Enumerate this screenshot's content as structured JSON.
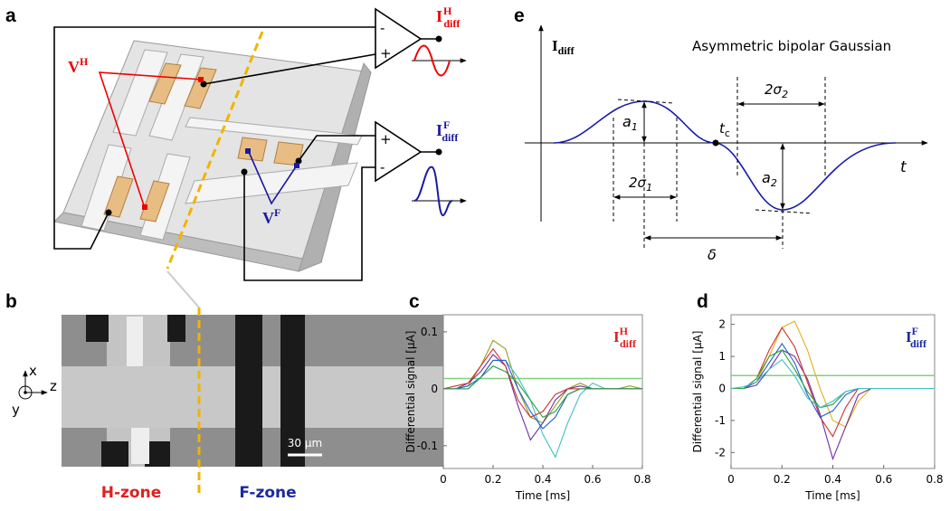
{
  "panel_a": {
    "label": "a",
    "amp_top": {
      "minus": "-",
      "plus": "+"
    },
    "amp_bottom": {
      "plus": "+",
      "minus": "-"
    },
    "i_h": {
      "base": "I",
      "sup": "H",
      "sub": "diff"
    },
    "i_f": {
      "base": "I",
      "sup": "F",
      "sub": "diff"
    },
    "v_h": {
      "base": "V",
      "sup": "H"
    },
    "v_f": {
      "base": "V",
      "sup": "F"
    }
  },
  "panel_b": {
    "label": "b",
    "axes": {
      "x": "x",
      "z": "z",
      "y": "y"
    },
    "scale_bar": "30 µm",
    "h_zone": "H-zone",
    "f_zone": "F-zone"
  },
  "panel_e": {
    "label": "e",
    "title": "Asymmetric bipolar Gaussian",
    "y_axis": {
      "base": "I",
      "sub": "diff"
    },
    "x_axis": "t",
    "a1": {
      "base": "a",
      "sub": "1"
    },
    "a2": {
      "base": "a",
      "sub": "2"
    },
    "sigma1": {
      "base": "2σ",
      "sub": "1"
    },
    "sigma2": {
      "base": "2σ",
      "sub": "2"
    },
    "tc": {
      "base": "t",
      "sub": "c"
    },
    "delta": "δ"
  },
  "chart_data": [
    {
      "type": "line",
      "label": "c",
      "xlabel": "Time [ms]",
      "ylabel": "Differential signal [μA]",
      "annotation": {
        "base": "I",
        "sup": "H",
        "sub": "diff",
        "color": "#e02020"
      },
      "xlim": [
        0,
        0.8
      ],
      "xticks": [
        0,
        0.2,
        0.4,
        0.6,
        0.8
      ],
      "ylim": [
        -0.14,
        0.13
      ],
      "yticks": [
        -0.1,
        0,
        0.1
      ],
      "hlines": [
        {
          "value": 0.018,
          "color": "#7fd17f"
        }
      ],
      "x": [
        0,
        0.05,
        0.1,
        0.15,
        0.2,
        0.25,
        0.3,
        0.35,
        0.4,
        0.45,
        0.5,
        0.55,
        0.6,
        0.65,
        0.7,
        0.75,
        0.8
      ],
      "series": [
        {
          "color": "#9a9a20",
          "values": [
            0,
            0,
            0.005,
            0.04,
            0.085,
            0.07,
            0,
            -0.05,
            -0.06,
            -0.03,
            0,
            0.01,
            0,
            0,
            0,
            0.005,
            0
          ]
        },
        {
          "color": "#40c0c0",
          "values": [
            0,
            0,
            0,
            0.02,
            0.05,
            0.05,
            0.02,
            -0.02,
            -0.08,
            -0.12,
            -0.06,
            -0.01,
            0.01,
            0,
            0,
            0,
            0
          ]
        },
        {
          "color": "#7030a0",
          "values": [
            0,
            0,
            0.01,
            0.03,
            0.06,
            0.04,
            -0.03,
            -0.09,
            -0.06,
            -0.02,
            0,
            0.005,
            0,
            0,
            0,
            0,
            0
          ]
        },
        {
          "color": "#d03030",
          "values": [
            0,
            0.005,
            0.01,
            0.04,
            0.07,
            0.04,
            -0.02,
            -0.05,
            -0.04,
            -0.01,
            0,
            0,
            0,
            0,
            0,
            0,
            0
          ]
        },
        {
          "color": "#2060d0",
          "values": [
            0,
            0,
            0.005,
            0.02,
            0.05,
            0.05,
            0,
            -0.04,
            -0.07,
            -0.05,
            -0.01,
            0,
            0,
            0,
            0,
            0,
            0
          ]
        },
        {
          "color": "#30a040",
          "values": [
            0,
            0,
            0,
            0.02,
            0.04,
            0.03,
            0.01,
            -0.02,
            -0.05,
            -0.04,
            -0.01,
            0,
            0,
            0,
            0,
            0,
            0
          ]
        }
      ]
    },
    {
      "type": "line",
      "label": "d",
      "xlabel": "Time [ms]",
      "ylabel": "Differential signal [μA]",
      "annotation": {
        "base": "I",
        "sup": "F",
        "sub": "diff",
        "color": "#1a2aa0"
      },
      "xlim": [
        0,
        0.8
      ],
      "xticks": [
        0,
        0.2,
        0.4,
        0.6,
        0.8
      ],
      "ylim": [
        -2.5,
        2.3
      ],
      "yticks": [
        -2,
        -1,
        0,
        1,
        2
      ],
      "hlines": [
        {
          "value": 0.4,
          "color": "#7fd17f"
        }
      ],
      "x": [
        0,
        0.05,
        0.1,
        0.15,
        0.2,
        0.25,
        0.3,
        0.35,
        0.4,
        0.45,
        0.5,
        0.55,
        0.6,
        0.65,
        0.7,
        0.75,
        0.8
      ],
      "series": [
        {
          "color": "#e0b020",
          "values": [
            0,
            0,
            0.2,
            1.0,
            1.9,
            2.1,
            1.2,
            0,
            -1,
            -1.2,
            -0.4,
            0,
            0,
            0,
            0,
            0,
            0
          ]
        },
        {
          "color": "#7030a0",
          "values": [
            0,
            0,
            0.1,
            0.6,
            1.2,
            1.0,
            0.3,
            -0.8,
            -2.2,
            -1.2,
            -0.2,
            0,
            0,
            0,
            0,
            0,
            0
          ]
        },
        {
          "color": "#d03030",
          "values": [
            0,
            0,
            0.3,
            1.2,
            1.9,
            1.3,
            0.2,
            -0.9,
            -1.5,
            -0.6,
            0,
            0,
            0,
            0,
            0,
            0,
            0
          ]
        },
        {
          "color": "#2060d0",
          "values": [
            0,
            0,
            0.2,
            0.8,
            1.4,
            0.8,
            -0.2,
            -0.9,
            -0.7,
            -0.2,
            0,
            0,
            0,
            0,
            0,
            0,
            0
          ]
        },
        {
          "color": "#30a040",
          "values": [
            0,
            0,
            0.3,
            1.0,
            1.2,
            0.6,
            -0.1,
            -0.6,
            -0.5,
            -0.1,
            0,
            0,
            0,
            0,
            0,
            0,
            0
          ]
        },
        {
          "color": "#40c0c0",
          "values": [
            0,
            0.05,
            0.2,
            0.6,
            0.9,
            0.4,
            -0.3,
            -0.6,
            -0.4,
            -0.1,
            0,
            0,
            0,
            0,
            0,
            0,
            0
          ]
        }
      ]
    }
  ]
}
